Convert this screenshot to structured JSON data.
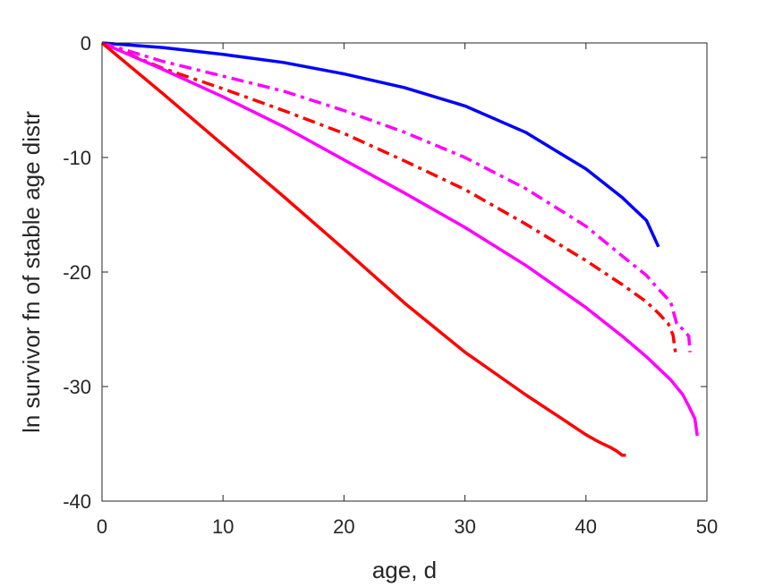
{
  "chart_data": {
    "type": "line",
    "title": "",
    "xlabel": "age, d",
    "ylabel": "ln survivor fn of stable age distr",
    "xlim": [
      0,
      50
    ],
    "ylim": [
      -40,
      0
    ],
    "xticks": [
      0,
      10,
      20,
      30,
      40,
      50
    ],
    "yticks": [
      -40,
      -30,
      -20,
      -10,
      0
    ],
    "grid": false,
    "legend": "none",
    "series": [
      {
        "color": "#0000ff",
        "style": "solid",
        "x": [
          0,
          5,
          10,
          15,
          20,
          25,
          30,
          35,
          40,
          43,
          45,
          46
        ],
        "y": [
          0,
          -0.4,
          -1.0,
          -1.7,
          -2.7,
          -3.9,
          -5.5,
          -7.8,
          -11.0,
          -13.5,
          -15.5,
          -17.8
        ]
      },
      {
        "color": "#ff00ff",
        "style": "dashdot",
        "x": [
          0,
          5,
          10,
          15,
          20,
          25,
          30,
          35,
          40,
          43,
          45,
          46,
          47,
          47.5,
          48,
          48.5,
          48.6
        ],
        "y": [
          0,
          -1.6,
          -2.9,
          -4.2,
          -5.9,
          -7.8,
          -10.0,
          -12.7,
          -16.0,
          -18.6,
          -20.3,
          -21.5,
          -22.6,
          -24.5,
          -25.0,
          -25.6,
          -27.0
        ]
      },
      {
        "color": "#ff0000",
        "style": "dashdot",
        "x": [
          0,
          5,
          10,
          15,
          20,
          25,
          30,
          35,
          40,
          43,
          45,
          46,
          46.8,
          47.2,
          47.4
        ],
        "y": [
          0,
          -2.2,
          -4.0,
          -5.9,
          -7.9,
          -10.3,
          -12.8,
          -15.8,
          -19.0,
          -21.1,
          -22.6,
          -23.6,
          -24.5,
          -25.5,
          -27.0
        ]
      },
      {
        "color": "#ff00ff",
        "style": "solid",
        "x": [
          0,
          5,
          10,
          15,
          20,
          25,
          30,
          35,
          40,
          43,
          45,
          47,
          48,
          48.5,
          49,
          49.2
        ],
        "y": [
          0,
          -2.3,
          -4.7,
          -7.3,
          -10.2,
          -13.1,
          -16.1,
          -19.4,
          -23.1,
          -25.6,
          -27.4,
          -29.4,
          -30.7,
          -31.7,
          -32.8,
          -34.3
        ]
      },
      {
        "color": "#ff0000",
        "style": "solid",
        "x": [
          0,
          5,
          10,
          15,
          20,
          25,
          30,
          35,
          38,
          40,
          41,
          42,
          42.5,
          43,
          43.3
        ],
        "y": [
          0,
          -4.4,
          -8.9,
          -13.4,
          -18.0,
          -22.7,
          -27.0,
          -30.7,
          -32.8,
          -34.2,
          -34.8,
          -35.3,
          -35.6,
          -36.0,
          -36.0
        ]
      }
    ]
  }
}
